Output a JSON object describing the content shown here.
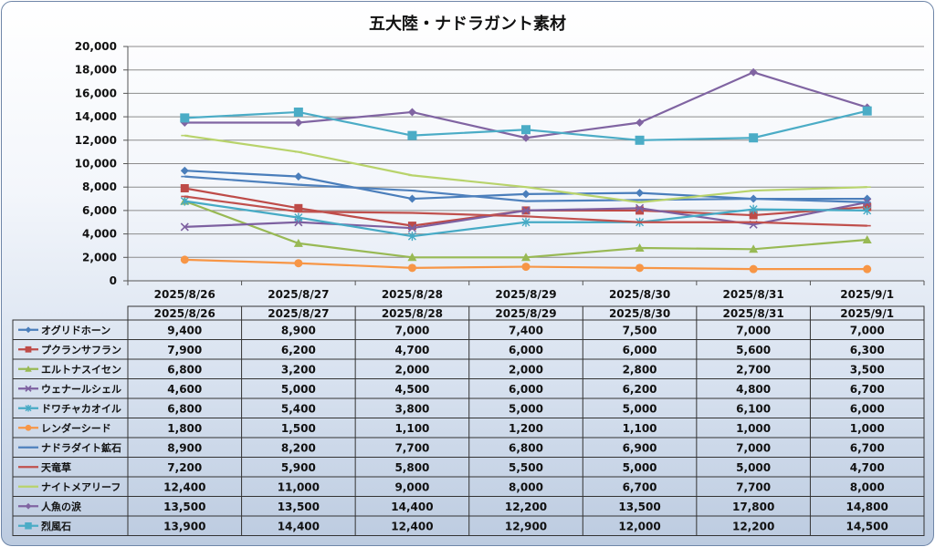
{
  "chart_data": {
    "type": "line",
    "title": "五大陸・ナドラガント素材",
    "categories": [
      "2025/8/26",
      "2025/8/27",
      "2025/8/28",
      "2025/8/29",
      "2025/8/30",
      "2025/8/31",
      "2025/9/1"
    ],
    "ylim": [
      0,
      20000
    ],
    "yticks": [
      "0",
      "2,000",
      "4,000",
      "6,000",
      "8,000",
      "10,000",
      "12,000",
      "14,000",
      "16,000",
      "18,000",
      "20,000"
    ],
    "grid": true,
    "legend": "data-table-below",
    "series": [
      {
        "name": "オグリドホーン",
        "color": "#4a7ebb",
        "marker": "diamond",
        "values": [
          9400,
          8900,
          7000,
          7400,
          7500,
          7000,
          7000
        ],
        "labels": [
          "9,400",
          "8,900",
          "7,000",
          "7,400",
          "7,500",
          "7,000",
          "7,000"
        ]
      },
      {
        "name": "プクランサフラン",
        "color": "#be4b48",
        "marker": "square",
        "values": [
          7900,
          6200,
          4700,
          6000,
          6000,
          5600,
          6300
        ],
        "labels": [
          "7,900",
          "6,200",
          "4,700",
          "6,000",
          "6,000",
          "5,600",
          "6,300"
        ]
      },
      {
        "name": "エルトナスイセン",
        "color": "#98b954",
        "marker": "triangle",
        "values": [
          6800,
          3200,
          2000,
          2000,
          2800,
          2700,
          3500
        ],
        "labels": [
          "6,800",
          "3,200",
          "2,000",
          "2,000",
          "2,800",
          "2,700",
          "3,500"
        ]
      },
      {
        "name": "ウェナールシェル",
        "color": "#7d60a0",
        "marker": "x",
        "values": [
          4600,
          5000,
          4500,
          6000,
          6200,
          4800,
          6700
        ],
        "labels": [
          "4,600",
          "5,000",
          "4,500",
          "6,000",
          "6,200",
          "4,800",
          "6,700"
        ]
      },
      {
        "name": "ドワチャカオイル",
        "color": "#46aac5",
        "marker": "star",
        "values": [
          6800,
          5400,
          3800,
          5000,
          5000,
          6100,
          6000
        ],
        "labels": [
          "6,800",
          "5,400",
          "3,800",
          "5,000",
          "5,000",
          "6,100",
          "6,000"
        ]
      },
      {
        "name": "レンダーシード",
        "color": "#f79646",
        "marker": "circle",
        "values": [
          1800,
          1500,
          1100,
          1200,
          1100,
          1000,
          1000
        ],
        "labels": [
          "1,800",
          "1,500",
          "1,100",
          "1,200",
          "1,100",
          "1,000",
          "1,000"
        ]
      },
      {
        "name": "ナドラダイト鉱石",
        "color": "#4f81bd",
        "marker": "dash",
        "values": [
          8900,
          8200,
          7700,
          6800,
          6900,
          7000,
          6700
        ],
        "labels": [
          "8,900",
          "8,200",
          "7,700",
          "6,800",
          "6,900",
          "7,000",
          "6,700"
        ]
      },
      {
        "name": "天竜草",
        "color": "#c0504d",
        "marker": "dash",
        "values": [
          7200,
          5900,
          5800,
          5500,
          5000,
          5000,
          4700
        ],
        "labels": [
          "7,200",
          "5,900",
          "5,800",
          "5,500",
          "5,000",
          "5,000",
          "4,700"
        ]
      },
      {
        "name": "ナイトメアリーフ",
        "color": "#b8d36b",
        "marker": "dash",
        "values": [
          12400,
          11000,
          9000,
          8000,
          6700,
          7700,
          8000
        ],
        "labels": [
          "12,400",
          "11,000",
          "9,000",
          "8,000",
          "6,700",
          "7,700",
          "8,000"
        ]
      },
      {
        "name": "人魚の涙",
        "color": "#8064a2",
        "marker": "diamond",
        "values": [
          13500,
          13500,
          14400,
          12200,
          13500,
          17800,
          14800
        ],
        "labels": [
          "13,500",
          "13,500",
          "14,400",
          "12,200",
          "13,500",
          "17,800",
          "14,800"
        ]
      },
      {
        "name": "烈風石",
        "color": "#4bacc6",
        "marker": "square-large",
        "values": [
          13900,
          14400,
          12400,
          12900,
          12000,
          12200,
          14500
        ],
        "labels": [
          "13,900",
          "14,400",
          "12,400",
          "12,900",
          "12,000",
          "12,200",
          "14,500"
        ]
      }
    ]
  }
}
